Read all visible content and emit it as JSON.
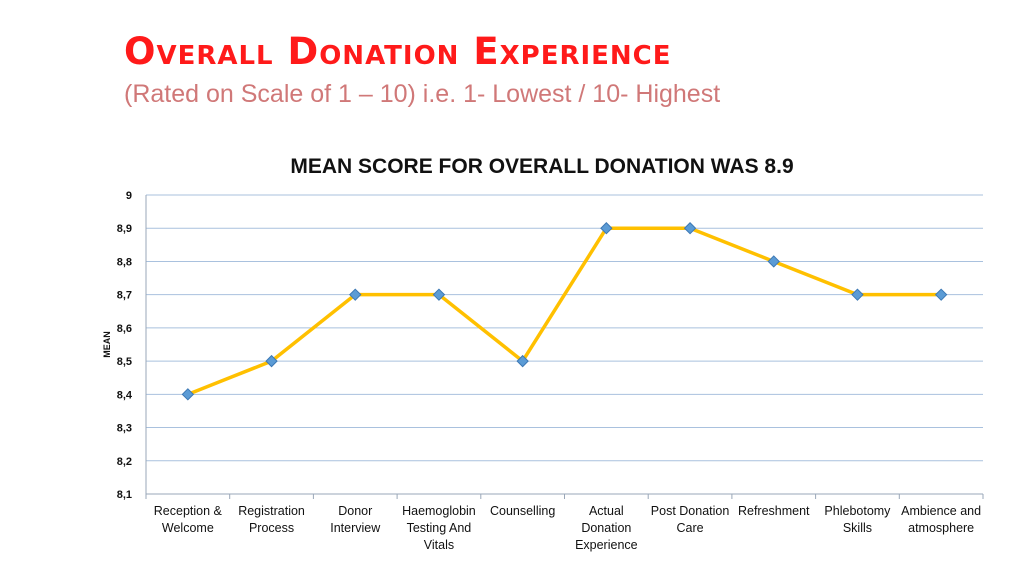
{
  "header": {
    "title": "Overall Donation Experience",
    "subtitle": "(Rated on Scale of 1 – 10) i.e. 1- Lowest / 10- Highest"
  },
  "chart_data": {
    "type": "line",
    "title": "MEAN SCORE FOR OVERALL DONATION WAS 8.9",
    "xlabel": "",
    "ylabel": "MEAN",
    "ylim": [
      8.1,
      9
    ],
    "ytick_step": 0.1,
    "ytick_labels": [
      "8,1",
      "8,2",
      "8,3",
      "8,4",
      "8,5",
      "8,6",
      "8,7",
      "8,8",
      "8,9",
      "9"
    ],
    "grid": true,
    "categories": [
      "Reception & Welcome",
      "Registration Process",
      "Donor Interview",
      "Haemoglobin Testing And Vitals",
      "Counselling",
      "Actual Donation Experience",
      "Post Donation Care",
      "Refreshment",
      "Phlebotomy Skills",
      "Ambience and atmosphere"
    ],
    "series": [
      {
        "name": "Mean",
        "values": [
          8.4,
          8.5,
          8.7,
          8.7,
          8.5,
          8.9,
          8.9,
          8.8,
          8.7,
          8.7
        ],
        "line_color": "#FFC000",
        "marker_color": "#5B9BD5"
      }
    ]
  }
}
